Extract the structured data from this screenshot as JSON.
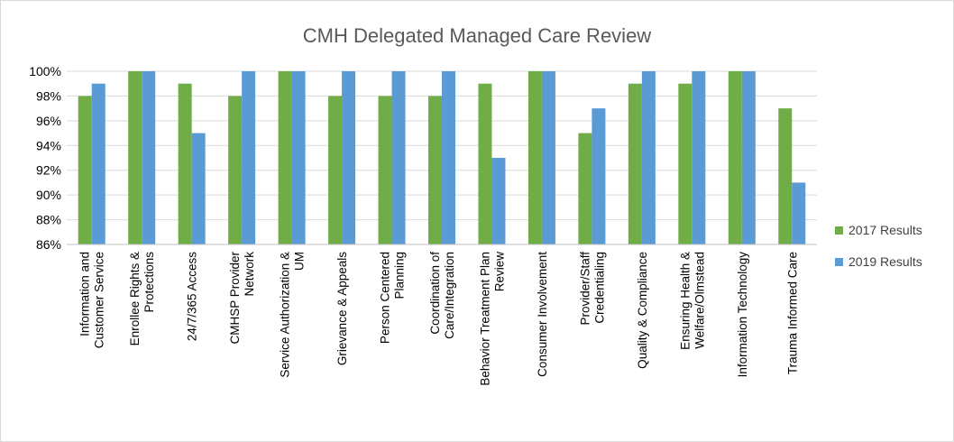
{
  "chart_data": {
    "type": "bar",
    "title": "CMH Delegated Managed Care Review",
    "categories": [
      [
        "Information and",
        "Customer Service"
      ],
      [
        "Enrollee Rights &",
        "Protections"
      ],
      [
        "24/7/365 Access"
      ],
      [
        "CMHSP Provider",
        "Network"
      ],
      [
        "Service Authorization &",
        "UM"
      ],
      [
        "Grievance & Appeals"
      ],
      [
        "Person Centered",
        "Planning"
      ],
      [
        "Coordination of",
        "Care/Integration"
      ],
      [
        "Behavior Treatment Plan",
        "Review"
      ],
      [
        "Consumer Involvement"
      ],
      [
        "Provider/Staff",
        "Credentialing"
      ],
      [
        "Quality & Compliance"
      ],
      [
        "Ensuring Health &",
        "Welfare/Olmstead"
      ],
      [
        "Information Technology"
      ],
      [
        "Trauma Informed Care"
      ]
    ],
    "series": [
      {
        "name": "2017 Results",
        "color": "#70ad47",
        "values": [
          98,
          100,
          99,
          98,
          100,
          98,
          98,
          98,
          99,
          100,
          95,
          99,
          99,
          100,
          97
        ]
      },
      {
        "name": "2019 Results",
        "color": "#5b9bd5",
        "values": [
          99,
          100,
          95,
          100,
          100,
          100,
          100,
          100,
          93,
          100,
          97,
          100,
          100,
          100,
          91
        ]
      }
    ],
    "y_ticks": [
      "86%",
      "88%",
      "90%",
      "92%",
      "94%",
      "96%",
      "98%",
      "100%"
    ],
    "ylim": [
      86,
      100
    ],
    "y_step": 2,
    "grid": true,
    "legend_position": "right"
  }
}
